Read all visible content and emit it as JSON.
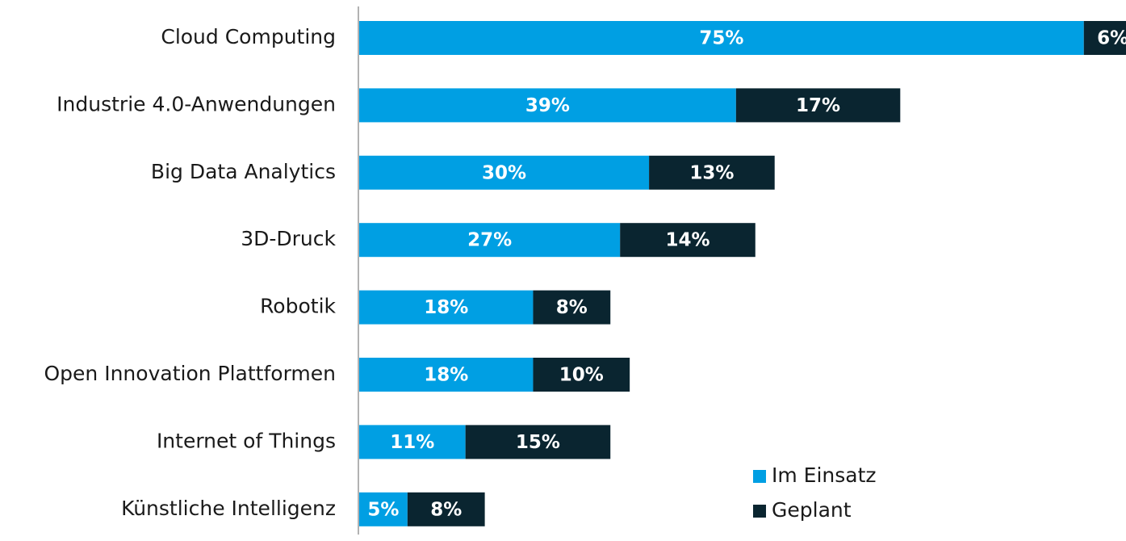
{
  "chart_data": {
    "type": "bar",
    "orientation": "horizontal",
    "stacked": true,
    "categories": [
      "Cloud Computing",
      "Industrie 4.0-Anwendungen",
      "Big Data Analytics",
      "3D-Druck",
      "Robotik",
      "Open Innovation Plattformen",
      "Internet of Things",
      "Künstliche Intelligenz"
    ],
    "series": [
      {
        "name": "Im Einsatz",
        "color": "#009fe3",
        "values": [
          75,
          39,
          30,
          27,
          18,
          18,
          11,
          5
        ],
        "value_labels": [
          "75%",
          "39%",
          "30%",
          "27%",
          "18%",
          "18%",
          "11%",
          "5%"
        ]
      },
      {
        "name": "Geplant",
        "color": "#0a2530",
        "values": [
          6,
          17,
          13,
          14,
          8,
          10,
          15,
          8
        ],
        "value_labels": [
          "6%",
          "17%",
          "13%",
          "14%",
          "8%",
          "10%",
          "15%",
          "8%"
        ]
      }
    ],
    "legend": "bottom-right"
  }
}
